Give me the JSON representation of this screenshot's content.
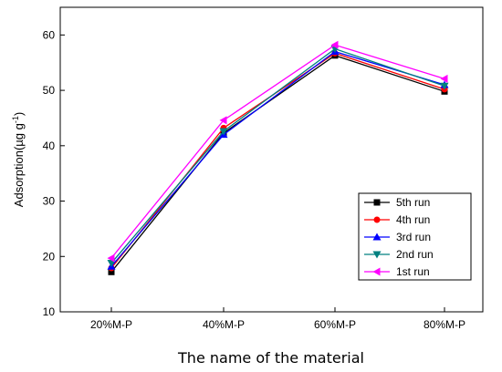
{
  "chart_data": {
    "type": "line",
    "title": "",
    "xlabel": "The name of the material",
    "ylabel": "Adsorption(µg g",
    "ylabel_sup": "-1",
    "ylabel_tail": ")",
    "categories": [
      "20%M-P",
      "40%M-P",
      "60%M-P",
      "80%M-P"
    ],
    "ylim": [
      10,
      65
    ],
    "yticks": [
      10,
      20,
      30,
      40,
      50,
      60
    ],
    "grid": false,
    "legend_position": "bottom-right",
    "series": [
      {
        "name": "5th run",
        "values": [
          17.2,
          42.3,
          56.3,
          49.8
        ],
        "color": "#000000",
        "marker": "square"
      },
      {
        "name": "4th run",
        "values": [
          17.9,
          43.2,
          56.7,
          50.2
        ],
        "color": "#ff0000",
        "marker": "circle"
      },
      {
        "name": "3rd run",
        "values": [
          18.2,
          42.0,
          57.0,
          51.0
        ],
        "color": "#0000ff",
        "marker": "triangle-up"
      },
      {
        "name": "2nd run",
        "values": [
          18.8,
          42.6,
          57.5,
          50.8
        ],
        "color": "#008080",
        "marker": "triangle-down"
      },
      {
        "name": "1st  run",
        "values": [
          19.7,
          44.6,
          58.2,
          52.1
        ],
        "color": "#ff00ff",
        "marker": "triangle-left"
      }
    ]
  }
}
